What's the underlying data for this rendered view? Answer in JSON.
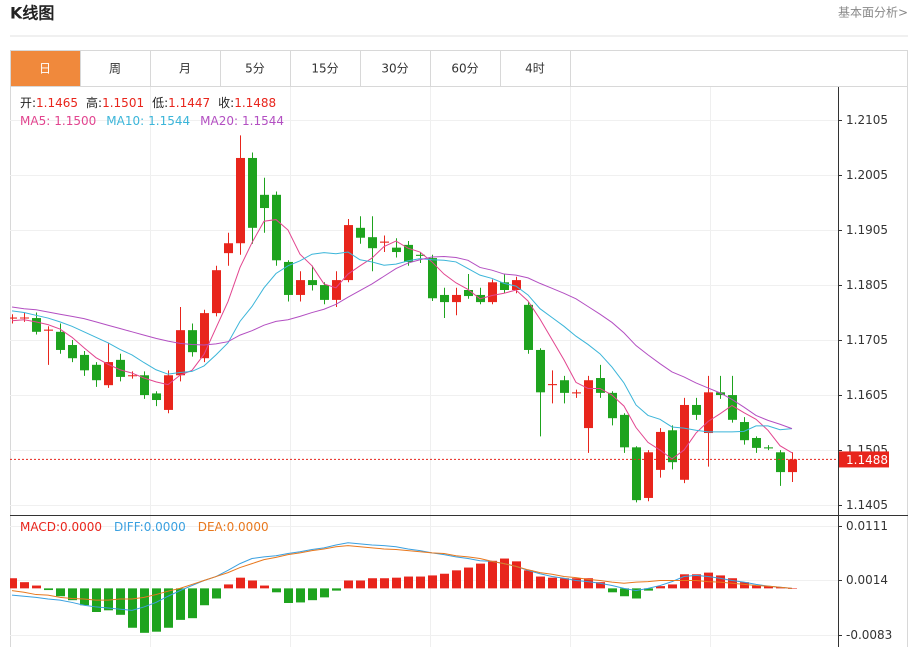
{
  "header": {
    "title": "K线图",
    "link": "基本面分析>"
  },
  "tabs": {
    "items": [
      "日",
      "周",
      "月",
      "5分",
      "15分",
      "30分",
      "60分",
      "4时"
    ],
    "active": 0
  },
  "chart_data": [
    {
      "type": "candlestick",
      "info": [
        {
          "label": "开:",
          "value": 1.1465
        },
        {
          "label": "高:",
          "value": 1.1501
        },
        {
          "label": "低:",
          "value": 1.1447
        },
        {
          "label": "收:",
          "value": 1.1488
        }
      ],
      "up_color": "#e8251c",
      "down_color": "#1ea31e",
      "open": [
        1.1744,
        1.1745,
        1.1745,
        1.1722,
        1.172,
        1.1696,
        1.1678,
        1.166,
        1.1623,
        1.1669,
        1.164,
        1.1641,
        1.1608,
        1.1578,
        1.1641,
        1.1723,
        1.1672,
        1.1754,
        1.1863,
        1.1881,
        1.2036,
        1.1969,
        1.1969,
        1.1847,
        1.1787,
        1.1814,
        1.1805,
        1.1778,
        1.1814,
        1.1909,
        1.1892,
        1.1882,
        1.1873,
        1.1878,
        1.186,
        1.1854,
        1.1787,
        1.1774,
        1.1796,
        1.1787,
        1.1774,
        1.181,
        1.1796,
        1.1769,
        1.1687,
        1.1623,
        1.1632,
        1.1608,
        1.1545,
        1.1636,
        1.1609,
        1.1569,
        1.151,
        1.1418,
        1.1469,
        1.1541,
        1.1451,
        1.1587,
        1.1536,
        1.161,
        1.1605,
        1.1556,
        1.1527,
        1.151,
        1.1501,
        1.1465
      ],
      "high": [
        1.1752,
        1.1755,
        1.1755,
        1.173,
        1.1735,
        1.1705,
        1.1685,
        1.1665,
        1.17,
        1.168,
        1.1648,
        1.1648,
        1.1612,
        1.165,
        1.1765,
        1.1735,
        1.176,
        1.184,
        1.19,
        1.2077,
        1.2046,
        1.2,
        1.1975,
        1.185,
        1.183,
        1.184,
        1.181,
        1.183,
        1.1925,
        1.193,
        1.193,
        1.1895,
        1.189,
        1.1885,
        1.1865,
        1.186,
        1.18,
        1.18,
        1.1825,
        1.18,
        1.1815,
        1.1825,
        1.182,
        1.1775,
        1.169,
        1.165,
        1.164,
        1.1615,
        1.164,
        1.166,
        1.1612,
        1.1572,
        1.1512,
        1.1505,
        1.1545,
        1.155,
        1.16,
        1.16,
        1.164,
        1.164,
        1.164,
        1.1565,
        1.153,
        1.1514,
        1.1505,
        1.1501
      ],
      "low": [
        1.1735,
        1.1738,
        1.1715,
        1.166,
        1.168,
        1.1665,
        1.164,
        1.162,
        1.1618,
        1.163,
        1.1635,
        1.1598,
        1.1585,
        1.1572,
        1.163,
        1.1675,
        1.1665,
        1.1748,
        1.184,
        1.186,
        1.188,
        1.19,
        1.184,
        1.1775,
        1.1775,
        1.1795,
        1.177,
        1.1765,
        1.181,
        1.188,
        1.183,
        1.1865,
        1.1855,
        1.184,
        1.1845,
        1.1776,
        1.1745,
        1.175,
        1.178,
        1.177,
        1.177,
        1.179,
        1.179,
        1.168,
        1.153,
        1.159,
        1.159,
        1.16,
        1.15,
        1.16,
        1.155,
        1.15,
        1.141,
        1.1412,
        1.1455,
        1.147,
        1.1445,
        1.156,
        1.1475,
        1.1598,
        1.1555,
        1.1515,
        1.15,
        1.1505,
        1.144,
        1.1447
      ],
      "close": [
        1.1746,
        1.1746,
        1.172,
        1.1724,
        1.1687,
        1.1672,
        1.165,
        1.1632,
        1.1665,
        1.1638,
        1.1641,
        1.1605,
        1.1596,
        1.1641,
        1.1723,
        1.1683,
        1.1754,
        1.1832,
        1.1881,
        1.2036,
        1.1909,
        1.1945,
        1.185,
        1.1787,
        1.1814,
        1.1805,
        1.1778,
        1.1814,
        1.1914,
        1.1891,
        1.1872,
        1.1884,
        1.1865,
        1.1847,
        1.1858,
        1.1781,
        1.1774,
        1.1787,
        1.1785,
        1.1774,
        1.181,
        1.1796,
        1.1814,
        1.1687,
        1.161,
        1.1625,
        1.1609,
        1.161,
        1.1632,
        1.1609,
        1.1563,
        1.151,
        1.1414,
        1.1501,
        1.1538,
        1.1483,
        1.1587,
        1.1569,
        1.161,
        1.1605,
        1.156,
        1.1523,
        1.1509,
        1.1508,
        1.1465,
        1.1488
      ],
      "series": [
        {
          "name": "MA5:",
          "color": "#e2458f",
          "last": {
            "value": 1.15,
            "label": "1.1500"
          },
          "values": [
            1.174,
            1.1742,
            1.1738,
            1.1733,
            1.1725,
            1.171,
            1.1691,
            1.1673,
            1.1661,
            1.1651,
            1.1645,
            1.1636,
            1.1629,
            1.1624,
            1.1641,
            1.165,
            1.1679,
            1.1727,
            1.1775,
            1.1837,
            1.1882,
            1.1921,
            1.1924,
            1.1905,
            1.1861,
            1.184,
            1.1807,
            1.18,
            1.1825,
            1.184,
            1.1854,
            1.1875,
            1.1885,
            1.1872,
            1.1865,
            1.1847,
            1.1825,
            1.1809,
            1.1797,
            1.178,
            1.1786,
            1.179,
            1.1796,
            1.1776,
            1.1743,
            1.1706,
            1.1669,
            1.1628,
            1.1617,
            1.1617,
            1.1605,
            1.1585,
            1.1546,
            1.1519,
            1.1505,
            1.1489,
            1.1505,
            1.1536,
            1.1557,
            1.1571,
            1.1586,
            1.1573,
            1.1561,
            1.1541,
            1.1513,
            1.15
          ]
        },
        {
          "name": "MA10:",
          "color": "#3bb5d9",
          "last": {
            "value": 1.1544,
            "label": "1.1544"
          },
          "values": [
            1.1758,
            1.1755,
            1.175,
            1.1745,
            1.1738,
            1.173,
            1.172,
            1.171,
            1.17,
            1.1688,
            1.1678,
            1.1664,
            1.1651,
            1.1643,
            1.1646,
            1.1648,
            1.1658,
            1.1678,
            1.17,
            1.1739,
            1.1766,
            1.18,
            1.1826,
            1.184,
            1.1849,
            1.1861,
            1.1864,
            1.1862,
            1.1865,
            1.1851,
            1.1847,
            1.1841,
            1.1843,
            1.1849,
            1.1853,
            1.1851,
            1.185,
            1.1847,
            1.1835,
            1.1823,
            1.1817,
            1.1808,
            1.1803,
            1.1787,
            1.1762,
            1.1746,
            1.173,
            1.1712,
            1.1697,
            1.168,
            1.1656,
            1.1627,
            1.1587,
            1.1568,
            1.1561,
            1.1547,
            1.1545,
            1.1541,
            1.1538,
            1.1538,
            1.1538,
            1.1539,
            1.1549,
            1.1549,
            1.1542,
            1.1544
          ]
        },
        {
          "name": "MA20:",
          "color": "#b34fc2",
          "last": {
            "value": 1.1544,
            "label": "1.1544"
          },
          "values": [
            1.1765,
            1.1762,
            1.176,
            1.1756,
            1.1752,
            1.1748,
            1.1744,
            1.1738,
            1.1732,
            1.1726,
            1.172,
            1.1714,
            1.1708,
            1.1703,
            1.1699,
            1.1697,
            1.1696,
            1.1698,
            1.1702,
            1.1714,
            1.1722,
            1.1732,
            1.1739,
            1.1742,
            1.1748,
            1.1755,
            1.1761,
            1.177,
            1.1783,
            1.1795,
            1.1807,
            1.1821,
            1.1835,
            1.1845,
            1.1851,
            1.1856,
            1.1857,
            1.1855,
            1.185,
            1.1837,
            1.1832,
            1.1825,
            1.1823,
            1.1818,
            1.1808,
            1.1799,
            1.179,
            1.178,
            1.1766,
            1.1752,
            1.1737,
            1.1718,
            1.1695,
            1.1678,
            1.1662,
            1.1647,
            1.1638,
            1.1627,
            1.1618,
            1.1609,
            1.1597,
            1.1583,
            1.1568,
            1.1559,
            1.1552,
            1.1544
          ]
        }
      ],
      "last_price": 1.1488,
      "last_price_color": "#e8251c",
      "ylim": [
        1.1387,
        1.2165
      ],
      "yticks": [
        1.1405,
        1.1505,
        1.1605,
        1.1705,
        1.1805,
        1.1905,
        1.2005,
        1.2105
      ],
      "grid": true
    },
    {
      "type": "macd",
      "ylim": [
        -0.01042,
        0.01286
      ],
      "yticks": [
        -0.0083,
        0.0014,
        0.0111
      ],
      "grid": true,
      "up_color": "#e8251c",
      "down_color": "#1ea31e",
      "series": [
        {
          "name": "MACD:",
          "type": "bar",
          "color": "#e8251c",
          "last": {
            "value": 0,
            "label": "0.0000"
          },
          "values": [
            0.0018,
            0.0011,
            0.0005,
            -0.0003,
            -0.0014,
            -0.0021,
            -0.003,
            -0.0042,
            -0.0039,
            -0.0047,
            -0.007,
            -0.0079,
            -0.0077,
            -0.007,
            -0.0056,
            -0.0053,
            -0.003,
            -0.0018,
            0.0007,
            0.0019,
            0.0014,
            0.0005,
            -0.0007,
            -0.0026,
            -0.0025,
            -0.0021,
            -0.0016,
            -0.0004,
            0.0014,
            0.0014,
            0.0018,
            0.0018,
            0.0019,
            0.0021,
            0.0021,
            0.0023,
            0.0026,
            0.0032,
            0.0037,
            0.0044,
            0.0049,
            0.0053,
            0.0048,
            0.0032,
            0.0021,
            0.0019,
            0.0018,
            0.0018,
            0.0018,
            0.0011,
            -0.0007,
            -0.0014,
            -0.0018,
            -0.0004,
            0.0004,
            0.0007,
            0.0025,
            0.0025,
            0.0028,
            0.0023,
            0.0018,
            0.0011,
            0.0005,
            0.0004,
            0.0002,
            0
          ]
        },
        {
          "name": "DIFF:",
          "type": "line",
          "color": "#3aa0e0",
          "last": {
            "value": 0,
            "label": "0.0000"
          },
          "values": [
            -0.0012,
            -0.0014,
            -0.0016,
            -0.0019,
            -0.0021,
            -0.0025,
            -0.003,
            -0.0033,
            -0.0035,
            -0.0037,
            -0.0039,
            -0.0033,
            -0.0025,
            -0.0014,
            -0.0004,
            0.0005,
            0.0014,
            0.0021,
            0.0032,
            0.0044,
            0.0053,
            0.0056,
            0.0058,
            0.0062,
            0.0065,
            0.0069,
            0.0072,
            0.0077,
            0.0081,
            0.0079,
            0.0077,
            0.0076,
            0.0074,
            0.007,
            0.0067,
            0.0063,
            0.006,
            0.0056,
            0.0053,
            0.0049,
            0.0048,
            0.0044,
            0.0039,
            0.0032,
            0.0026,
            0.0021,
            0.0018,
            0.0014,
            0.0012,
            0.0009,
            0.0005,
            0,
            -0.0004,
            0,
            0.0005,
            0.0012,
            0.0021,
            0.0023,
            0.0021,
            0.0018,
            0.0014,
            0.0011,
            0.0007,
            0.0004,
            0.0002,
            0
          ]
        },
        {
          "name": "DEA:",
          "type": "line",
          "color": "#e8781e",
          "last": {
            "value": 0,
            "label": "0.0000"
          },
          "values": [
            -0.0004,
            -0.0007,
            -0.0011,
            -0.0012,
            -0.0016,
            -0.0018,
            -0.0019,
            -0.0021,
            -0.0021,
            -0.0019,
            -0.0019,
            -0.0016,
            -0.0011,
            -0.0005,
            0,
            0.0007,
            0.0014,
            0.0021,
            0.0028,
            0.0037,
            0.0044,
            0.0051,
            0.0055,
            0.006,
            0.0063,
            0.0067,
            0.007,
            0.0074,
            0.0076,
            0.0074,
            0.0072,
            0.007,
            0.0069,
            0.0067,
            0.0065,
            0.0063,
            0.0062,
            0.0058,
            0.0056,
            0.0053,
            0.0048,
            0.0044,
            0.0039,
            0.0033,
            0.0028,
            0.0025,
            0.0021,
            0.0019,
            0.0016,
            0.0014,
            0.0011,
            0.0009,
            0.0011,
            0.0012,
            0.0014,
            0.0014,
            0.0014,
            0.0014,
            0.0012,
            0.0011,
            0.0009,
            0.0007,
            0.0005,
            0.0004,
            0.0002,
            0
          ]
        }
      ]
    }
  ]
}
